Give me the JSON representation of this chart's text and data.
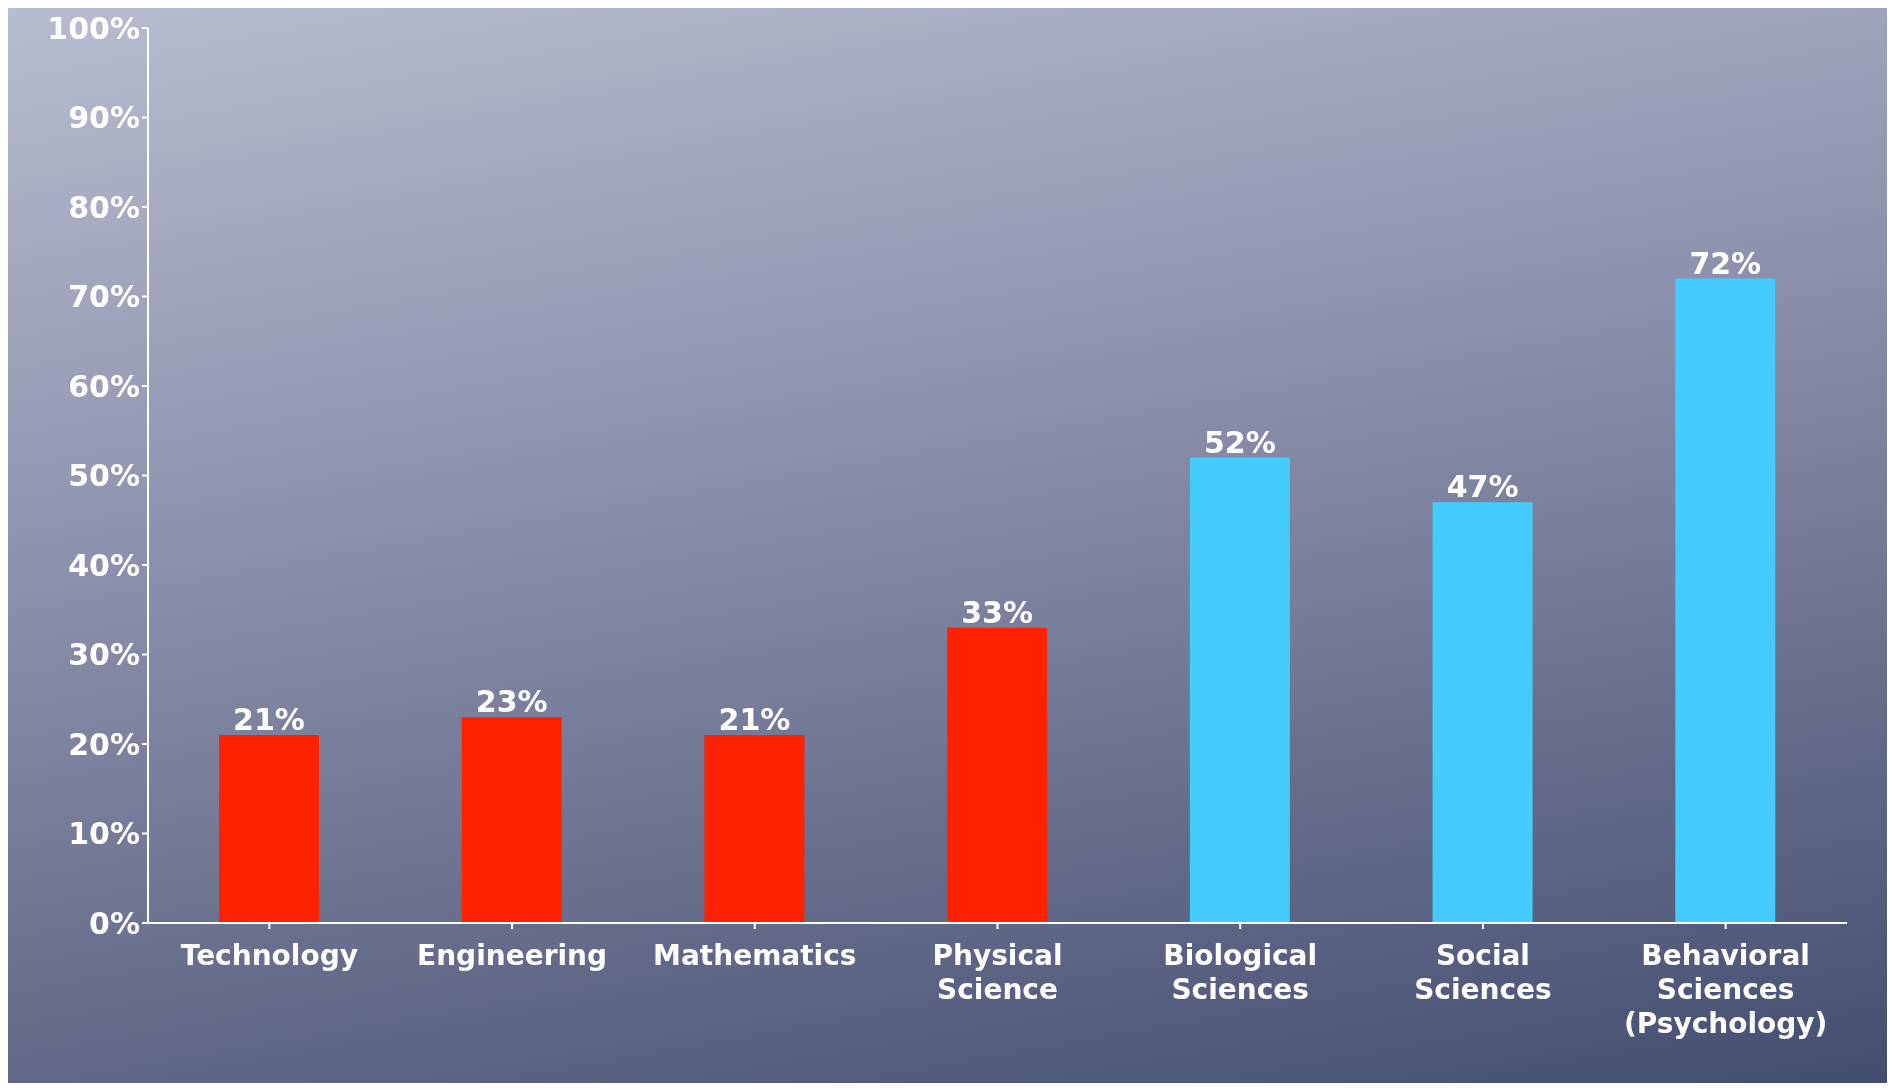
{
  "chart_data": {
    "type": "bar",
    "categories": [
      "Technology",
      "Engineering",
      "Mathematics",
      "Physical Science",
      "Biological Sciences",
      "Social Sciences",
      "Behavioral Sciences (Psychology)"
    ],
    "values": [
      21,
      23,
      21,
      33,
      52,
      47,
      72
    ],
    "colors": [
      "#ff2200",
      "#ff2200",
      "#ff2200",
      "#ff2200",
      "#44ccff",
      "#44ccff",
      "#44ccff"
    ],
    "value_labels": [
      "21%",
      "23%",
      "21%",
      "33%",
      "52%",
      "47%",
      "72%"
    ],
    "ylim": [
      0,
      100
    ],
    "yticks": [
      {
        "value": 0,
        "label": "0%"
      },
      {
        "value": 10,
        "label": "10%"
      },
      {
        "value": 20,
        "label": "20%"
      },
      {
        "value": 30,
        "label": "30%"
      },
      {
        "value": 40,
        "label": "40%"
      },
      {
        "value": 50,
        "label": "50%"
      },
      {
        "value": 60,
        "label": "60%"
      },
      {
        "value": 70,
        "label": "70%"
      },
      {
        "value": 80,
        "label": "80%"
      },
      {
        "value": 90,
        "label": "90%"
      },
      {
        "value": 100,
        "label": "100%"
      }
    ],
    "grid": false,
    "legend": false
  }
}
